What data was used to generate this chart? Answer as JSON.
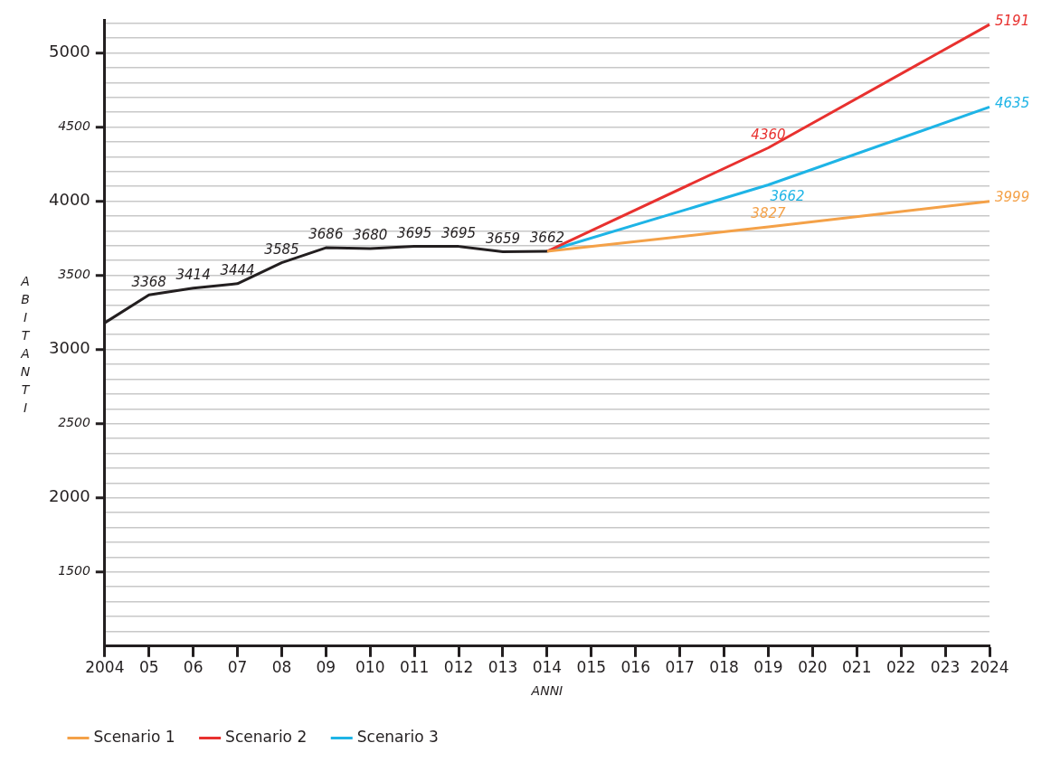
{
  "chart_data": {
    "type": "line",
    "xlabel": "ANNI",
    "ylabel": "ABITANTI",
    "categories": [
      "2004",
      "05",
      "06",
      "07",
      "08",
      "09",
      "010",
      "011",
      "012",
      "013",
      "014",
      "015",
      "016",
      "017",
      "018",
      "019",
      "020",
      "021",
      "022",
      "023",
      "2024"
    ],
    "ylim": [
      1000,
      5220
    ],
    "yticks": [
      {
        "value": 1100,
        "label": null
      },
      {
        "value": 1200,
        "label": null
      },
      {
        "value": 1300,
        "label": null
      },
      {
        "value": 1400,
        "label": null
      },
      1500,
      {
        "value": 1600,
        "label": null
      },
      {
        "value": 1700,
        "label": null
      },
      {
        "value": 1800,
        "label": null
      },
      {
        "value": 1900,
        "label": null
      },
      2000,
      {
        "value": 2100,
        "label": null
      },
      {
        "value": 2200,
        "label": null
      },
      {
        "value": 2300,
        "label": null
      },
      {
        "value": 2400,
        "label": null
      },
      2500,
      {
        "value": 2600,
        "label": null
      },
      {
        "value": 2700,
        "label": null
      },
      {
        "value": 2800,
        "label": null
      },
      {
        "value": 2900,
        "label": null
      },
      3000,
      {
        "value": 3100,
        "label": null
      },
      {
        "value": 3200,
        "label": null
      },
      {
        "value": 3300,
        "label": null
      },
      {
        "value": 3400,
        "label": null
      },
      3500,
      {
        "value": 3600,
        "label": null
      },
      {
        "value": 3700,
        "label": null
      },
      {
        "value": 3800,
        "label": null
      },
      {
        "value": 3900,
        "label": null
      },
      4000,
      {
        "value": 4100,
        "label": null
      },
      {
        "value": 4200,
        "label": null
      },
      {
        "value": 4300,
        "label": null
      },
      {
        "value": 4400,
        "label": null
      },
      4500,
      {
        "value": 4600,
        "label": null
      },
      {
        "value": 4700,
        "label": null
      },
      {
        "value": 4800,
        "label": null
      },
      {
        "value": 4900,
        "label": null
      },
      5000,
      {
        "value": 5100,
        "label": null
      },
      {
        "value": 5200,
        "label": null
      }
    ],
    "annotations": [
      {
        "text": "3662",
        "x": "019",
        "y": 4110
      }
    ],
    "grid": "y",
    "legend": "bottom left",
    "marker": "none",
    "line_style": "solid",
    "series": [
      {
        "color": "#231f20",
        "values": [
          3180,
          3368,
          3414,
          3444,
          3585,
          3686,
          3680,
          3695,
          3695,
          3659,
          3662,
          null,
          null,
          null,
          null,
          null,
          null,
          null,
          null,
          null,
          null
        ],
        "value_labels": [
          null,
          "3368",
          "3414",
          "3444",
          "3585",
          "3686",
          "3680",
          "3695",
          "3695",
          "3659",
          "3662",
          null,
          null,
          null,
          null,
          null,
          null,
          null,
          null,
          null,
          null
        ]
      },
      {
        "name": "Scenario 1",
        "color": "#f4a148",
        "values": [
          null,
          null,
          null,
          null,
          null,
          null,
          null,
          null,
          null,
          null,
          3662,
          null,
          null,
          null,
          null,
          3827,
          null,
          null,
          null,
          null,
          3999
        ],
        "value_labels": [
          null,
          null,
          null,
          null,
          null,
          null,
          null,
          null,
          null,
          null,
          null,
          null,
          null,
          null,
          null,
          "3827",
          null,
          null,
          null,
          null,
          "3999"
        ]
      },
      {
        "name": "Scenario 2",
        "color": "#e8312f",
        "values": [
          null,
          null,
          null,
          null,
          null,
          null,
          null,
          null,
          null,
          null,
          3662,
          null,
          null,
          null,
          null,
          4360,
          null,
          null,
          null,
          null,
          5191
        ],
        "value_labels": [
          null,
          null,
          null,
          null,
          null,
          null,
          null,
          null,
          null,
          null,
          null,
          null,
          null,
          null,
          null,
          "4360",
          null,
          null,
          null,
          null,
          "5191"
        ]
      },
      {
        "name": "Scenario 3",
        "color": "#1eb4e6",
        "values": [
          null,
          null,
          null,
          null,
          null,
          null,
          null,
          null,
          null,
          null,
          3662,
          null,
          null,
          null,
          null,
          4110,
          null,
          null,
          null,
          null,
          4635
        ],
        "value_labels": [
          null,
          null,
          null,
          null,
          null,
          null,
          null,
          null,
          null,
          null,
          null,
          null,
          null,
          null,
          null,
          null,
          null,
          null,
          null,
          null,
          "4635"
        ]
      }
    ]
  }
}
